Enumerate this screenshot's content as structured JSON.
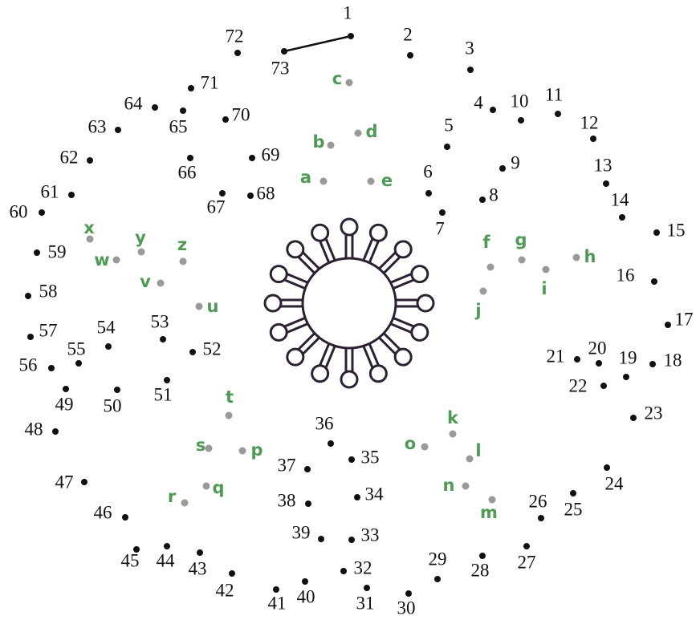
{
  "numbered_dots": [
    1,
    2,
    3,
    4,
    5,
    6,
    7,
    8,
    9,
    10,
    11,
    12,
    13,
    14,
    15,
    16,
    17,
    18,
    19,
    20,
    21,
    22,
    23,
    24,
    25,
    26,
    27,
    28,
    29,
    30,
    31,
    32,
    33,
    34,
    35,
    36,
    37,
    38,
    39,
    40,
    41,
    42,
    43,
    44,
    45,
    46,
    47,
    48,
    49,
    50,
    51,
    52,
    53,
    54,
    55,
    56,
    57,
    58,
    59,
    60,
    61,
    62,
    63,
    64,
    65,
    66,
    67,
    68,
    69,
    70,
    71,
    72,
    73
  ],
  "letter_dots": [
    "a",
    "b",
    "c",
    "d",
    "e",
    "f",
    "g",
    "h",
    "i",
    "j",
    "k",
    "l",
    "m",
    "n",
    "o",
    "p",
    "q",
    "r",
    "s",
    "t",
    "u",
    "v",
    "w",
    "x",
    "y",
    "z"
  ]
}
